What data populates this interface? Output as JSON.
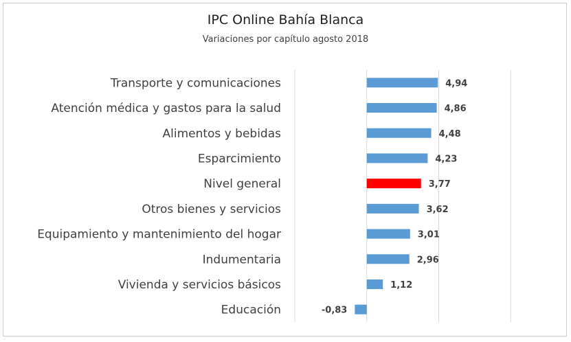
{
  "chart_data": {
    "type": "bar",
    "orientation": "horizontal",
    "title": "IPC Online Bahía Blanca",
    "subtitle": "Variaciones por capítulo agosto 2018",
    "categories": [
      "Transporte y comunicaciones",
      "Atención médica y gastos para la salud",
      "Alimentos y bebidas",
      "Esparcimiento",
      "Nivel general",
      "Otros bienes y servicios",
      "Equipamiento y mantenimiento del hogar",
      "Indumentaria",
      "Vivienda y servicios básicos",
      "Educación"
    ],
    "values": [
      4.94,
      4.86,
      4.48,
      4.23,
      3.77,
      3.62,
      3.01,
      2.96,
      1.12,
      -0.83
    ],
    "value_labels": [
      "4,94",
      "4,86",
      "4,48",
      "4,23",
      "3,77",
      "3,62",
      "3,01",
      "2,96",
      "1,12",
      "-0,83"
    ],
    "highlight": "Nivel general",
    "xlim": [
      -5,
      15
    ],
    "grid": true,
    "colors": {
      "bar": "#5b9bd5",
      "highlight": "#ff0000",
      "grid": "#d9d9d9",
      "text": "#404040"
    }
  }
}
